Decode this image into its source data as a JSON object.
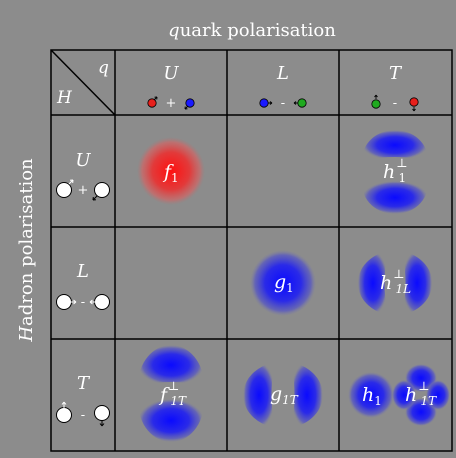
{
  "title": {
    "q": "q",
    "rest": "uark polarisation"
  },
  "side": {
    "H": "H",
    "rest": "adron polarisation"
  },
  "corner": {
    "q": "q",
    "H": "H"
  },
  "columns": [
    {
      "label": "U",
      "sign": "+"
    },
    {
      "label": "L",
      "sign": "-"
    },
    {
      "label": "T",
      "sign": "-"
    }
  ],
  "rows": [
    {
      "label": "U",
      "sign": "+"
    },
    {
      "label": "L",
      "sign": "-"
    },
    {
      "label": "T",
      "sign": "-"
    }
  ],
  "cells": {
    "f1": {
      "main": "f",
      "sub": "1"
    },
    "h1perp": {
      "main": "h",
      "sup": "⊥",
      "sub": "1"
    },
    "g1": {
      "main": "g",
      "sub": "1"
    },
    "h1L": {
      "main": "h",
      "sup": "⊥",
      "sub": "1L"
    },
    "f1T": {
      "main": "f",
      "sup": "⊥",
      "sub": "1T"
    },
    "g1T": {
      "main": "g",
      "sub": "1T"
    },
    "h1": {
      "main": "h",
      "sub": "1"
    },
    "h1Tperp": {
      "main": "h",
      "sup": "⊥",
      "sub": "1T"
    }
  },
  "colors": {
    "background": "#8c8c8c",
    "red": "#e8201c",
    "blue": "#1a1aff",
    "green": "#1faa1f",
    "grid": "#000000"
  }
}
